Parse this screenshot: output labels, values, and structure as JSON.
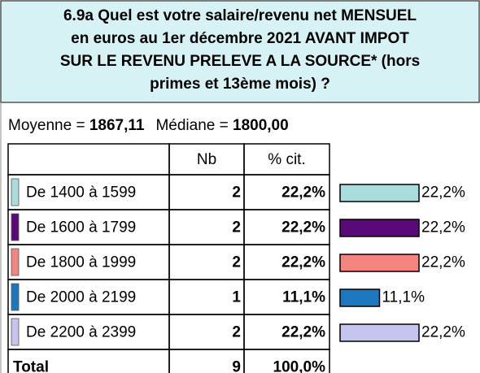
{
  "header": {
    "title_lines": [
      "6.9a Quel est votre salaire/revenu net MENSUEL",
      "en euros au 1er décembre 2021 AVANT IMPOT",
      "SUR LE REVENU PRELEVE A LA SOURCE* (hors",
      "primes et 13ème mois) ?"
    ]
  },
  "stats": {
    "mean_label": "Moyenne =",
    "mean": "1867,11",
    "median_label": "Médiane =",
    "median": "1800,00"
  },
  "table": {
    "columns": [
      "Nb",
      "% cit."
    ],
    "rows": [
      {
        "label": "De 1400 à 1599",
        "color": "#a9dcdc",
        "nb": 2,
        "pct": 22.2,
        "pct_label": "22,2%"
      },
      {
        "label": "De 1600 à 1799",
        "color": "#5a0a78",
        "nb": 2,
        "pct": 22.2,
        "pct_label": "22,2%"
      },
      {
        "label": "De 1800 à 1999",
        "color": "#f4857e",
        "nb": 2,
        "pct": 22.2,
        "pct_label": "22,2%"
      },
      {
        "label": "De 2000 à 2199",
        "color": "#1b78be",
        "nb": 1,
        "pct": 11.1,
        "pct_label": "11,1%"
      },
      {
        "label": "De 2200 à 2399",
        "color": "#c5c5ef",
        "nb": 2,
        "pct": 22.2,
        "pct_label": "22,2%"
      }
    ],
    "total": {
      "label": "Total",
      "nb": 9,
      "pct_label": "100,0%"
    }
  }
}
